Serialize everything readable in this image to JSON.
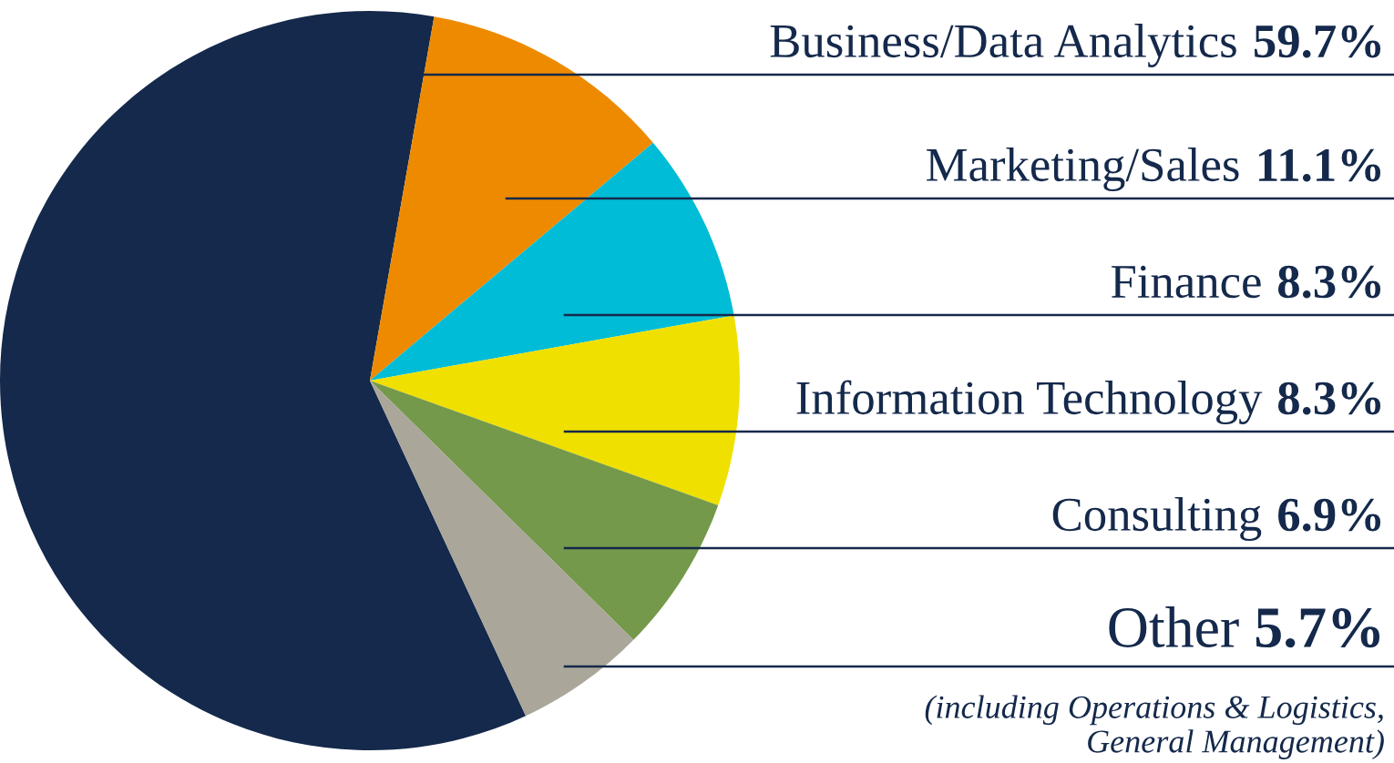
{
  "chart_data": {
    "type": "pie",
    "categories": [
      "Business/Data Analytics",
      "Marketing/Sales",
      "Finance",
      "Information Technology",
      "Consulting",
      "Other"
    ],
    "values": [
      59.7,
      11.1,
      8.3,
      8.3,
      6.9,
      5.7
    ],
    "value_labels": [
      "59.7%",
      "11.1%",
      "8.3%",
      "8.3%",
      "6.9%",
      "5.7%"
    ],
    "colors": [
      "#14294b",
      "#ee8a00",
      "#00bcd6",
      "#f0e000",
      "#74994a",
      "#aaa69a"
    ],
    "annotations": [
      "(including Operations & Logistics,\nGeneral Management)"
    ]
  }
}
